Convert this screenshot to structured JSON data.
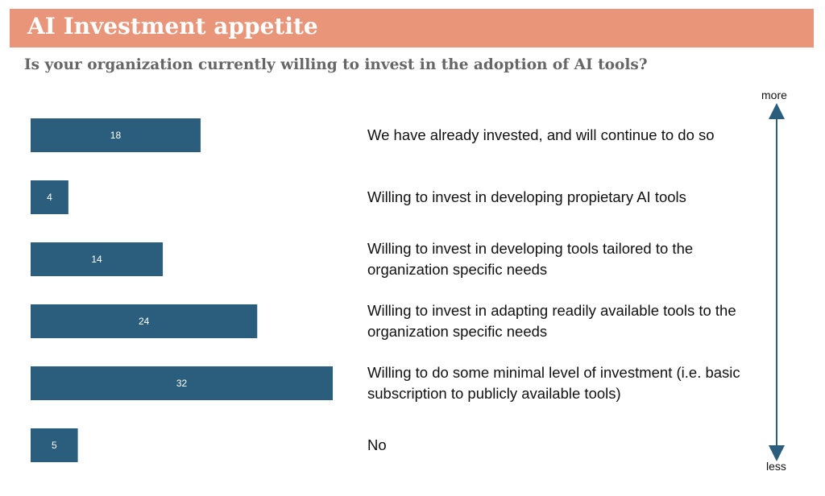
{
  "header": {
    "title": "AI Investment appetite",
    "subtitle": "Is your organization currently willing to invest in the adoption of AI tools?"
  },
  "scale": {
    "top_label": "more",
    "bottom_label": "less"
  },
  "colors": {
    "bar": "#2b5d7c",
    "title_background": "#e8957a",
    "arrow": "#2b5d7c"
  },
  "chart_data": {
    "type": "bar",
    "orientation": "horizontal",
    "title": "AI Investment appetite",
    "subtitle": "Is your organization currently willing to invest in the adoption of AI tools?",
    "categories": [
      "We have already invested, and will continue to do so",
      "Willing to invest in developing propietary AI tools",
      "Willing to invest in developing tools tailored to the organization specific needs",
      "Willing to invest in adapting readily available tools to the organization specific needs",
      "Willing to do some minimal level of investment (i.e. basic subscription to publicly available tools)",
      "No"
    ],
    "values": [
      18,
      4,
      14,
      24,
      32,
      5
    ],
    "data_labels": [
      "18",
      "4",
      "14",
      "24",
      "32",
      "5"
    ],
    "xlim": [
      0,
      32
    ],
    "grid": false,
    "legend": "none"
  }
}
